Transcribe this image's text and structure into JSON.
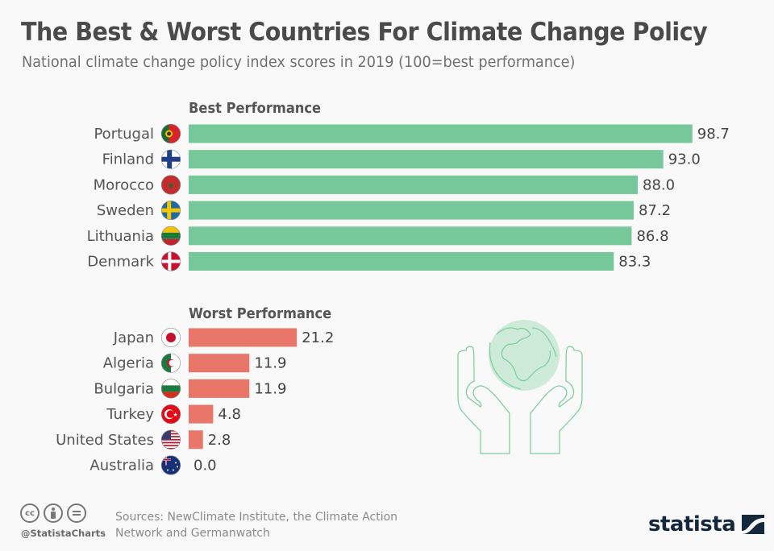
{
  "header": {
    "title": "The Best & Worst Countries For Climate Change Policy",
    "subtitle": "National climate change policy index scores in 2019 (100=best performance)"
  },
  "chart_data": {
    "type": "bar",
    "orientation": "horizontal",
    "title": "The Best & Worst Countries For Climate Change Policy",
    "subtitle": "National climate change policy index scores in 2019 (100=best performance)",
    "xlabel": "",
    "ylabel": "",
    "xlim": [
      0,
      100
    ],
    "grid": false,
    "groups": [
      {
        "name": "Best Performance",
        "color": "#76c89a",
        "categories": [
          "Portugal",
          "Finland",
          "Morocco",
          "Sweden",
          "Lithuania",
          "Denmark"
        ],
        "values": [
          98.7,
          93.0,
          88.0,
          87.2,
          86.8,
          83.3
        ],
        "labels": [
          "98.7",
          "93.0",
          "88.0",
          "87.2",
          "86.8",
          "83.3"
        ],
        "flags": [
          "portugal",
          "finland",
          "morocco",
          "sweden",
          "lithuania",
          "denmark"
        ]
      },
      {
        "name": "Worst Performance",
        "color": "#e8776a",
        "categories": [
          "Japan",
          "Algeria",
          "Bulgaria",
          "Turkey",
          "United States",
          "Australia"
        ],
        "values": [
          21.2,
          11.9,
          11.9,
          4.8,
          2.8,
          0.0
        ],
        "labels": [
          "21.2",
          "11.9",
          "11.9",
          "4.8",
          "2.8",
          "0.0"
        ],
        "flags": [
          "japan",
          "algeria",
          "bulgaria",
          "turkey",
          "united-states",
          "australia"
        ]
      }
    ]
  },
  "footer": {
    "sources": "Sources: NewClimate Institute, the Climate Action Network and Germanwatch",
    "handle": "@StatistaCharts",
    "license_icons": [
      "cc-icon",
      "by-icon",
      "nd-icon"
    ],
    "cc_label": "cc",
    "logo": "statista"
  }
}
